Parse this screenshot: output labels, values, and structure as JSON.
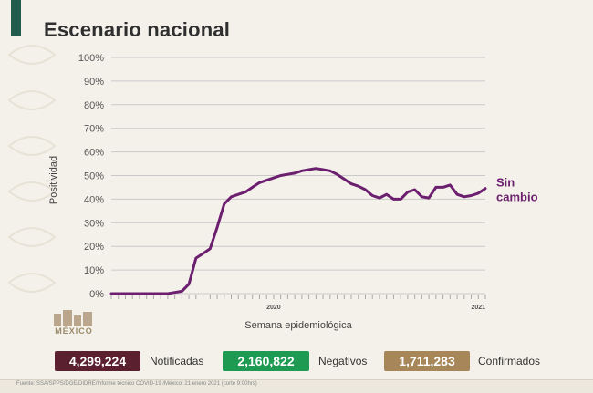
{
  "slide": {
    "title": "Escenario nacional",
    "logo_text": "MÉXICO",
    "source": "Fuente: SSA/SPPS/DGE/DIDRE/Informe técnico COVID-19 /México: 21 enero 2021 (corte 9:00hrs)"
  },
  "colors": {
    "line": "#6b1f6e",
    "notificadas": "#5a2030",
    "negativos": "#1e9a52",
    "confirmados": "#a7875a",
    "brand": "#235b4e"
  },
  "stats": [
    {
      "value": "4,299,224",
      "label": "Notificadas",
      "color_key": "notificadas"
    },
    {
      "value": "2,160,822",
      "label": "Negativos",
      "color_key": "negativos"
    },
    {
      "value": "1,711,283",
      "label": "Confirmados",
      "color_key": "confirmados"
    }
  ],
  "chart_data": {
    "type": "line",
    "title": "",
    "xlabel": "Semana epidemiológica",
    "ylabel": "Positividad",
    "yticks": [
      "0%",
      "10%",
      "20%",
      "30%",
      "40%",
      "50%",
      "60%",
      "70%",
      "80%",
      "90%",
      "100%"
    ],
    "ylim": [
      0,
      100
    ],
    "grid": true,
    "year_labels": [
      {
        "text": "2020",
        "week": 24
      },
      {
        "text": "2021",
        "week": 53
      }
    ],
    "annotation": [
      "Sin",
      "cambio"
    ],
    "series": [
      {
        "x": [
          1,
          2,
          3,
          4,
          5,
          6,
          7,
          8,
          9,
          10,
          11,
          12,
          13,
          14,
          15,
          16,
          17,
          18,
          19,
          20,
          21,
          22,
          23,
          24,
          25,
          26,
          27,
          28,
          29,
          30,
          31,
          32,
          33,
          34,
          35,
          36,
          37,
          38,
          39,
          40,
          41,
          42,
          43,
          44,
          45,
          46,
          47,
          48,
          49,
          50,
          51,
          52,
          53,
          54
        ],
        "values": [
          0,
          0,
          0,
          0,
          0,
          0,
          0,
          0,
          0,
          0.5,
          1,
          4,
          15,
          17,
          19,
          28,
          38,
          41,
          42,
          43,
          45,
          47,
          48,
          49,
          50,
          50.5,
          51,
          52,
          52.5,
          53,
          52.5,
          52,
          50.5,
          48.5,
          46.5,
          45.5,
          44,
          41.5,
          40.5,
          42,
          40,
          40,
          43,
          44,
          41,
          40.5,
          45,
          45,
          46,
          42,
          41,
          41.5,
          42.5,
          44.5
        ]
      }
    ]
  }
}
